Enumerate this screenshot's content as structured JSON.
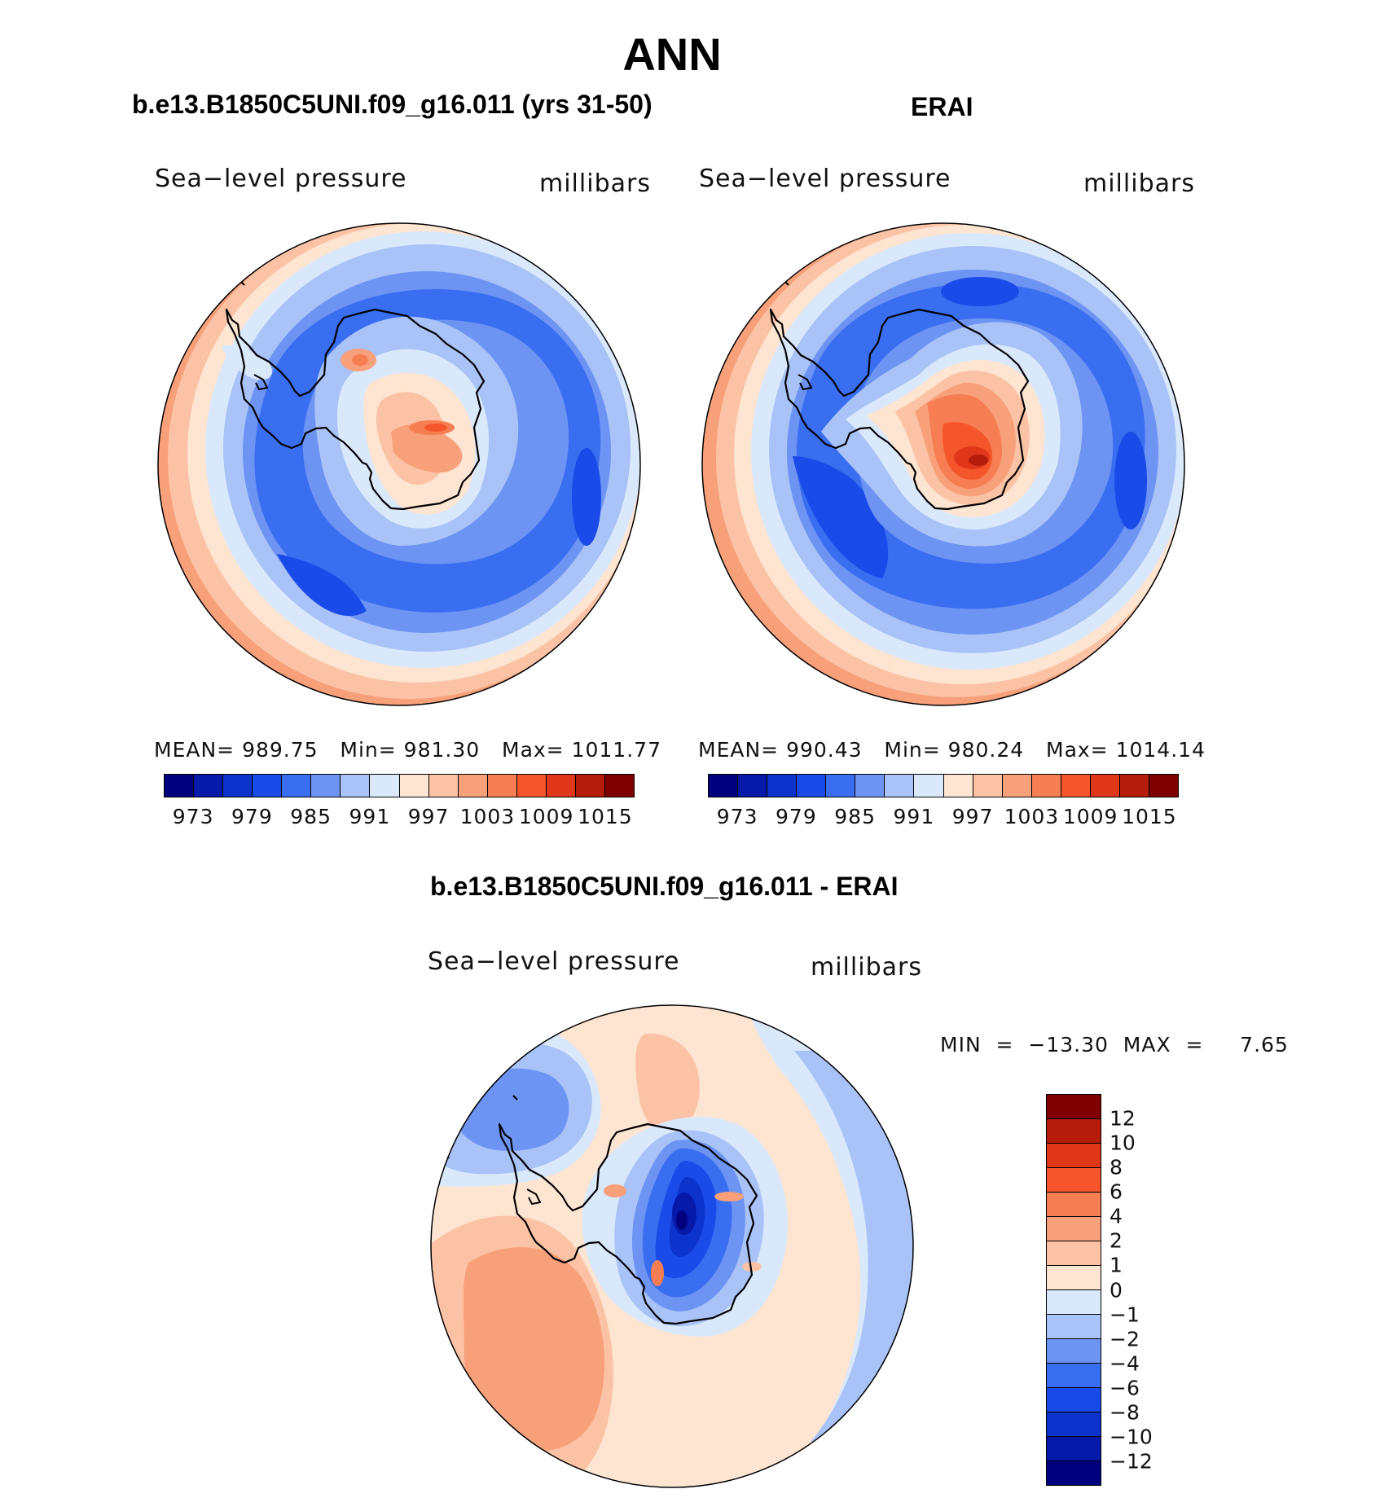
{
  "figure": {
    "title": "ANN",
    "left_panel": {
      "title": "b.e13.B1850C5UNI.f09_g16.011 (yrs 31-50)",
      "variable": "Sea−level pressure",
      "units": "millibars",
      "stats": {
        "mean_label": "MEAN=",
        "mean": "989.75",
        "min_label": "Min=",
        "min": "981.30",
        "max_label": "Max=",
        "max": "1011.77"
      }
    },
    "right_panel": {
      "title": "ERAI",
      "variable": "Sea−level pressure",
      "units": "millibars",
      "stats": {
        "mean_label": "MEAN=",
        "mean": "990.43",
        "min_label": "Min=",
        "min": "980.24",
        "max_label": "Max=",
        "max": "1014.14"
      }
    },
    "diff_panel": {
      "title": "b.e13.B1850C5UNI.f09_g16.011 - ERAI",
      "variable": "Sea−level pressure",
      "units": "millibars",
      "stats_text": "MIN  =  −13.30  MAX  =     7.65"
    }
  },
  "chart_data": [
    {
      "type": "heatmap",
      "subtype": "south-polar-stereographic contour map",
      "title": "b.e13.B1850C5UNI.f09_g16.011 (yrs 31-50)",
      "field": "Sea-level pressure",
      "units": "millibars",
      "mean": 989.75,
      "min": 981.3,
      "max": 1011.77,
      "colorbar_levels": [
        970,
        973,
        976,
        979,
        982,
        985,
        988,
        991,
        994,
        997,
        1000,
        1003,
        1006,
        1009,
        1012,
        1015,
        1018
      ],
      "colorbar_labels": [
        "973",
        "979",
        "985",
        "991",
        "997",
        "1003",
        "1009",
        "1015"
      ],
      "colorbar_colors": [
        "#00007f",
        "#0619a8",
        "#0c33cc",
        "#1a4be8",
        "#3a6ef0",
        "#6d93f3",
        "#a9c2f7",
        "#d9e8fb",
        "#fde5d2",
        "#fbc2a5",
        "#f7a07a",
        "#f77d52",
        "#f5552b",
        "#e0371a",
        "#b51c0c",
        "#7f0000"
      ]
    },
    {
      "type": "heatmap",
      "subtype": "south-polar-stereographic contour map",
      "title": "ERAI",
      "field": "Sea-level pressure",
      "units": "millibars",
      "mean": 990.43,
      "min": 980.24,
      "max": 1014.14,
      "colorbar_levels": [
        970,
        973,
        976,
        979,
        982,
        985,
        988,
        991,
        994,
        997,
        1000,
        1003,
        1006,
        1009,
        1012,
        1015,
        1018
      ],
      "colorbar_labels": [
        "973",
        "979",
        "985",
        "991",
        "997",
        "1003",
        "1009",
        "1015"
      ],
      "colorbar_colors": [
        "#00007f",
        "#0619a8",
        "#0c33cc",
        "#1a4be8",
        "#3a6ef0",
        "#6d93f3",
        "#a9c2f7",
        "#d9e8fb",
        "#fde5d2",
        "#fbc2a5",
        "#f7a07a",
        "#f77d52",
        "#f5552b",
        "#e0371a",
        "#b51c0c",
        "#7f0000"
      ]
    },
    {
      "type": "heatmap",
      "subtype": "south-polar-stereographic difference contour map",
      "title": "b.e13.B1850C5UNI.f09_g16.011 - ERAI",
      "field": "Sea-level pressure difference",
      "units": "millibars",
      "min": -13.3,
      "max": 7.65,
      "colorbar_labels": [
        "12",
        "10",
        "8",
        "6",
        "4",
        "2",
        "1",
        "0",
        "−1",
        "−2",
        "−4",
        "−6",
        "−8",
        "−10",
        "−12"
      ],
      "colorbar_colors": [
        "#7f0000",
        "#b51c0c",
        "#e0371a",
        "#f5552b",
        "#f77d52",
        "#f7a07a",
        "#fbc2a5",
        "#fde5d2",
        "#d9e8fb",
        "#a9c2f7",
        "#6d93f3",
        "#3a6ef0",
        "#1a4be8",
        "#0c33cc",
        "#0619a8",
        "#00007f"
      ]
    }
  ]
}
